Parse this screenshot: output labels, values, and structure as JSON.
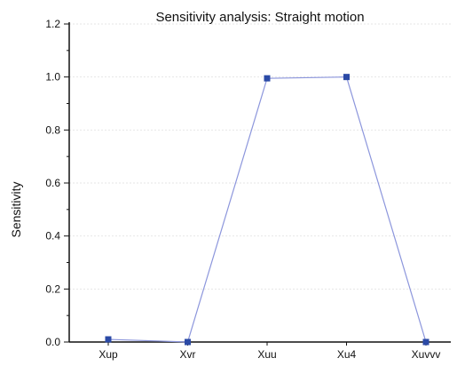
{
  "chart_data": {
    "type": "line",
    "title": "Sensitivity analysis: Straight motion",
    "xlabel": "",
    "ylabel": "Sensitivity",
    "categories": [
      "Xup",
      "Xvr",
      "Xuu",
      "Xu4",
      "Xuvvv"
    ],
    "series": [
      {
        "values": [
          0.01,
          0.0,
          0.995,
          1.0,
          0.0
        ]
      }
    ],
    "ylim": [
      0,
      1.2
    ],
    "yticks": [
      "0.0",
      "0.2",
      "0.4",
      "0.6",
      "0.8",
      "1.0",
      "1.2"
    ],
    "grid": true,
    "colors": {
      "line": "#8c96dc",
      "marker": "#2b4aa6",
      "axis": "#111111",
      "grid": "#e6e6e6"
    }
  }
}
